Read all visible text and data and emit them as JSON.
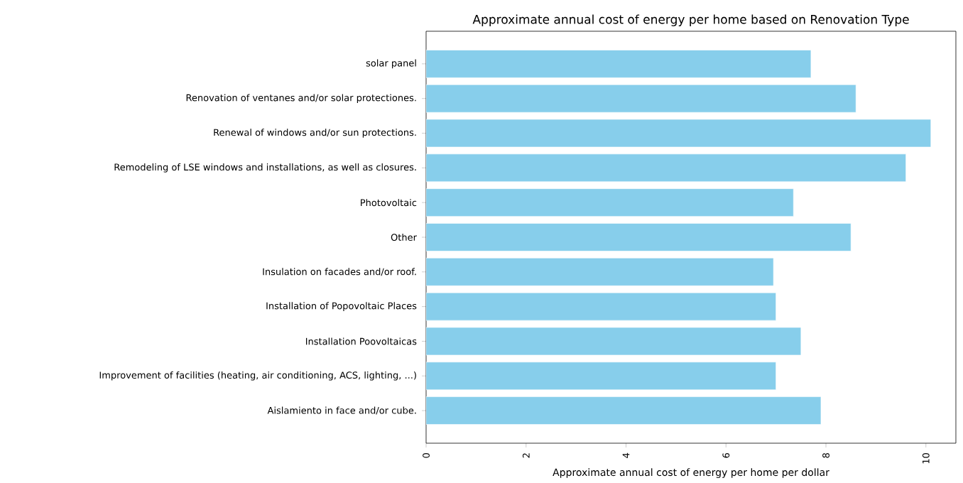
{
  "chart_data": {
    "type": "bar",
    "orientation": "horizontal",
    "title": "Approximate annual cost of energy per home based on Renovation Type",
    "xlabel": "Approximate annual cost of energy per home per dollar",
    "categories": [
      "solar panel",
      "Renovation of ventanes and/or solar protectiones.",
      "Renewal of windows and/or sun protections.",
      "Remodeling of LSE windows and installations, as well as closures.",
      "Photovoltaic",
      "Other",
      "Insulation on facades and/or roof.",
      "Installation of Popovoltaic Places",
      "Installation Poovoltaicas",
      "Improvement of facilities (heating, air conditioning, ACS, lighting, ...)",
      "Aislamiento in face and/or cube."
    ],
    "values": [
      7.7,
      8.6,
      10.1,
      9.6,
      7.35,
      8.5,
      6.95,
      7.0,
      7.5,
      7.0,
      7.9
    ],
    "color": "#87ceeb",
    "xlim": [
      0,
      10.6
    ],
    "xticks": [
      0,
      2,
      4,
      6,
      8,
      10
    ]
  }
}
